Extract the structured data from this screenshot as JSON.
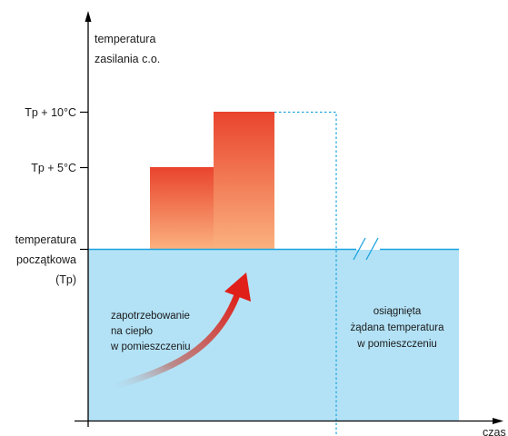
{
  "y_axis_title": [
    "temperatura",
    "zasilania c.o."
  ],
  "x_axis_title": "czas",
  "level_labels": {
    "tp_plus_10": "Tp + 10°C",
    "tp_plus_5": "Tp + 5°C",
    "tp": [
      "temperatura",
      "początkowa",
      "(Tp)"
    ]
  },
  "zones": {
    "heating_demand": [
      "zapotrzebowanie",
      "na ciepło",
      "w pomieszczeniu"
    ],
    "reached": [
      "osiągnięta",
      "żądana temperatura",
      "w pomieszczeniu"
    ]
  },
  "colors": {
    "room_area": "#b3e2f6",
    "baseline": "#1aa3e0",
    "dotted_line": "#1aa3e0",
    "step_top": "#e9442d",
    "step_bottom": "#fbb27f",
    "arrow_head": "#e01f18",
    "axis": "#000000"
  }
}
